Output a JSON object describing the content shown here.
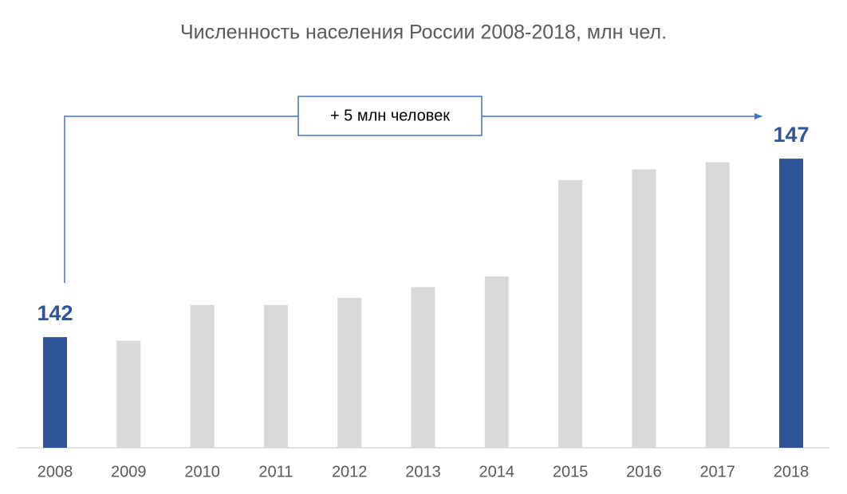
{
  "chart_data": {
    "type": "bar",
    "title": "Численность населения России 2008-2018, млн чел.",
    "categories": [
      "2008",
      "2009",
      "2010",
      "2011",
      "2012",
      "2013",
      "2014",
      "2015",
      "2016",
      "2017",
      "2018"
    ],
    "values": [
      142,
      141.9,
      142.9,
      142.9,
      143.1,
      143.4,
      143.7,
      146.4,
      146.7,
      146.9,
      147
    ],
    "value_labels": [
      "142",
      null,
      null,
      null,
      null,
      null,
      null,
      null,
      null,
      null,
      "147"
    ],
    "colors": [
      "#2f5597",
      "#d9d9d9",
      "#d9d9d9",
      "#d9d9d9",
      "#d9d9d9",
      "#d9d9d9",
      "#d9d9d9",
      "#d9d9d9",
      "#d9d9d9",
      "#d9d9d9",
      "#2f5597"
    ],
    "ylim": [
      138.9,
      147.5
    ],
    "annotation": "+ 5 млн человек"
  }
}
